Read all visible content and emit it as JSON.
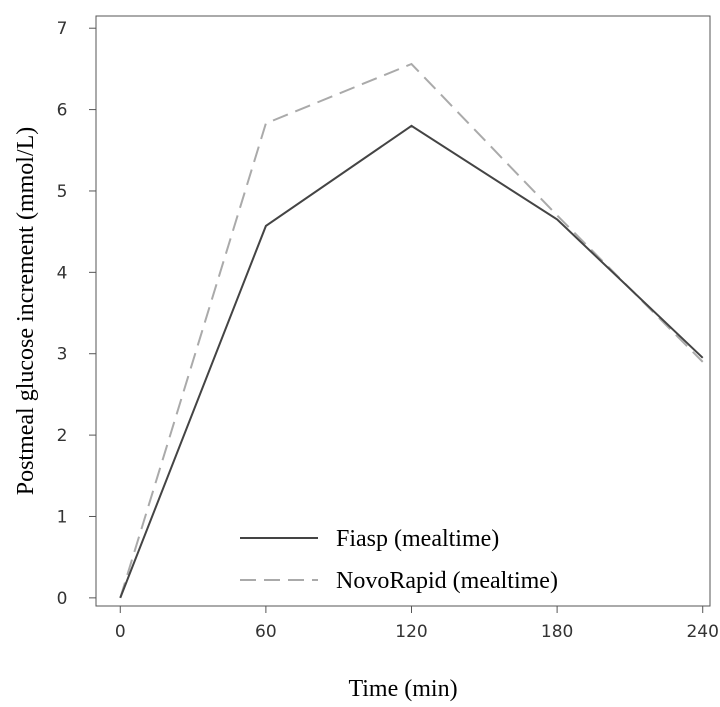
{
  "chart_data": {
    "type": "line",
    "title": "",
    "xlabel": "Time (min)",
    "ylabel": "Postmeal glucose increment (mmol/L)",
    "x": [
      0,
      60,
      120,
      180,
      240
    ],
    "xticks": [
      0,
      60,
      120,
      180,
      240
    ],
    "yticks": [
      0,
      1,
      2,
      3,
      4,
      5,
      6,
      7
    ],
    "xlim": [
      -10,
      243
    ],
    "ylim": [
      -0.1,
      7.15
    ],
    "grid": false,
    "legend_position": "bottom-center",
    "series": [
      {
        "name": "Fiasp (mealtime)",
        "values": [
          0,
          4.57,
          5.8,
          4.65,
          2.95
        ],
        "color": "#444444",
        "dash": "solid"
      },
      {
        "name": "NovoRapid (mealtime)",
        "values": [
          0,
          5.83,
          6.56,
          4.7,
          2.9
        ],
        "color": "#aaaaaa",
        "dash": "dashed"
      }
    ]
  }
}
